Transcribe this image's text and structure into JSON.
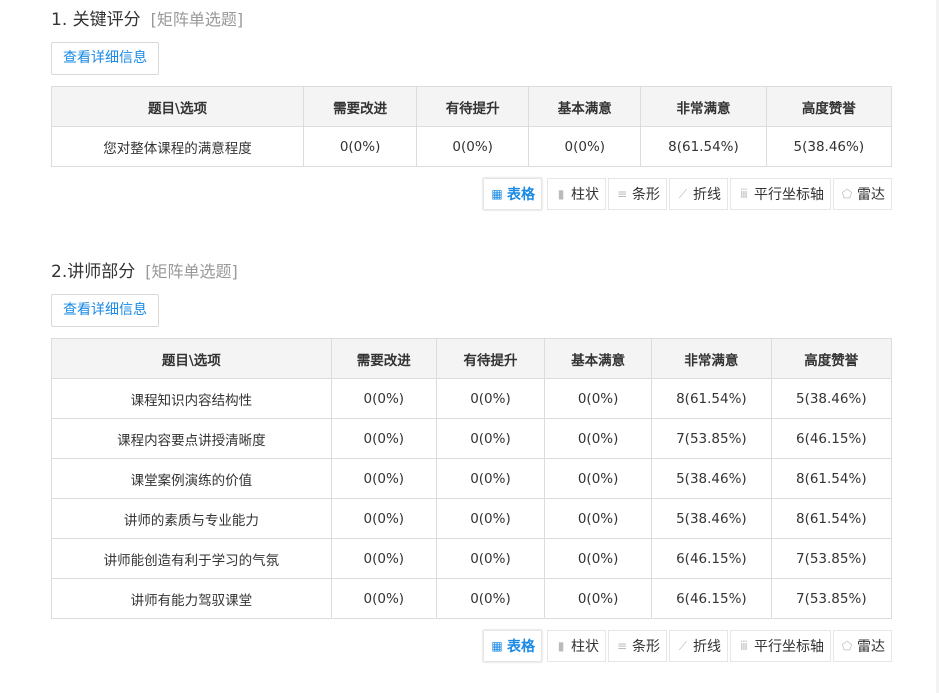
{
  "accent": "#1a8ae5",
  "toolbar": [
    {
      "label": "表格",
      "icon": "table-icon",
      "glyph": "▦"
    },
    {
      "label": "柱状",
      "icon": "bar-chart-icon",
      "glyph": "▮"
    },
    {
      "label": "条形",
      "icon": "horizontal-bar-icon",
      "glyph": "≡"
    },
    {
      "label": "折线",
      "icon": "line-chart-icon",
      "glyph": "⟋"
    },
    {
      "label": "平行坐标轴",
      "icon": "parallel-axis-icon",
      "glyph": "ⅲ"
    },
    {
      "label": "雷达",
      "icon": "radar-icon",
      "glyph": "⬠"
    }
  ],
  "sections": [
    {
      "title": "1. 关键评分",
      "type": "[矩阵单选题]",
      "detail": "查看详细信息",
      "headers": [
        "题目\\选项",
        "需要改进",
        "有待提升",
        "基本满意",
        "非常满意",
        "高度赞誉"
      ],
      "rows": [
        [
          "您对整体课程的满意程度",
          "0(0%)",
          "0(0%)",
          "0(0%)",
          "8(61.54%)",
          "5(38.46%)"
        ]
      ]
    },
    {
      "title": "2.讲师部分",
      "type": "[矩阵单选题]",
      "detail": "查看详细信息",
      "headers": [
        "题目\\选项",
        "需要改进",
        "有待提升",
        "基本满意",
        "非常满意",
        "高度赞誉"
      ],
      "rows": [
        [
          "课程知识内容结构性",
          "0(0%)",
          "0(0%)",
          "0(0%)",
          "8(61.54%)",
          "5(38.46%)"
        ],
        [
          "课程内容要点讲授清晰度",
          "0(0%)",
          "0(0%)",
          "0(0%)",
          "7(53.85%)",
          "6(46.15%)"
        ],
        [
          "课堂案例演练的价值",
          "0(0%)",
          "0(0%)",
          "0(0%)",
          "5(38.46%)",
          "8(61.54%)"
        ],
        [
          "讲师的素质与专业能力",
          "0(0%)",
          "0(0%)",
          "0(0%)",
          "5(38.46%)",
          "8(61.54%)"
        ],
        [
          "讲师能创造有利于学习的气氛",
          "0(0%)",
          "0(0%)",
          "0(0%)",
          "6(46.15%)",
          "7(53.85%)"
        ],
        [
          "讲师有能力驾驭课堂",
          "0(0%)",
          "0(0%)",
          "0(0%)",
          "6(46.15%)",
          "7(53.85%)"
        ]
      ]
    }
  ]
}
